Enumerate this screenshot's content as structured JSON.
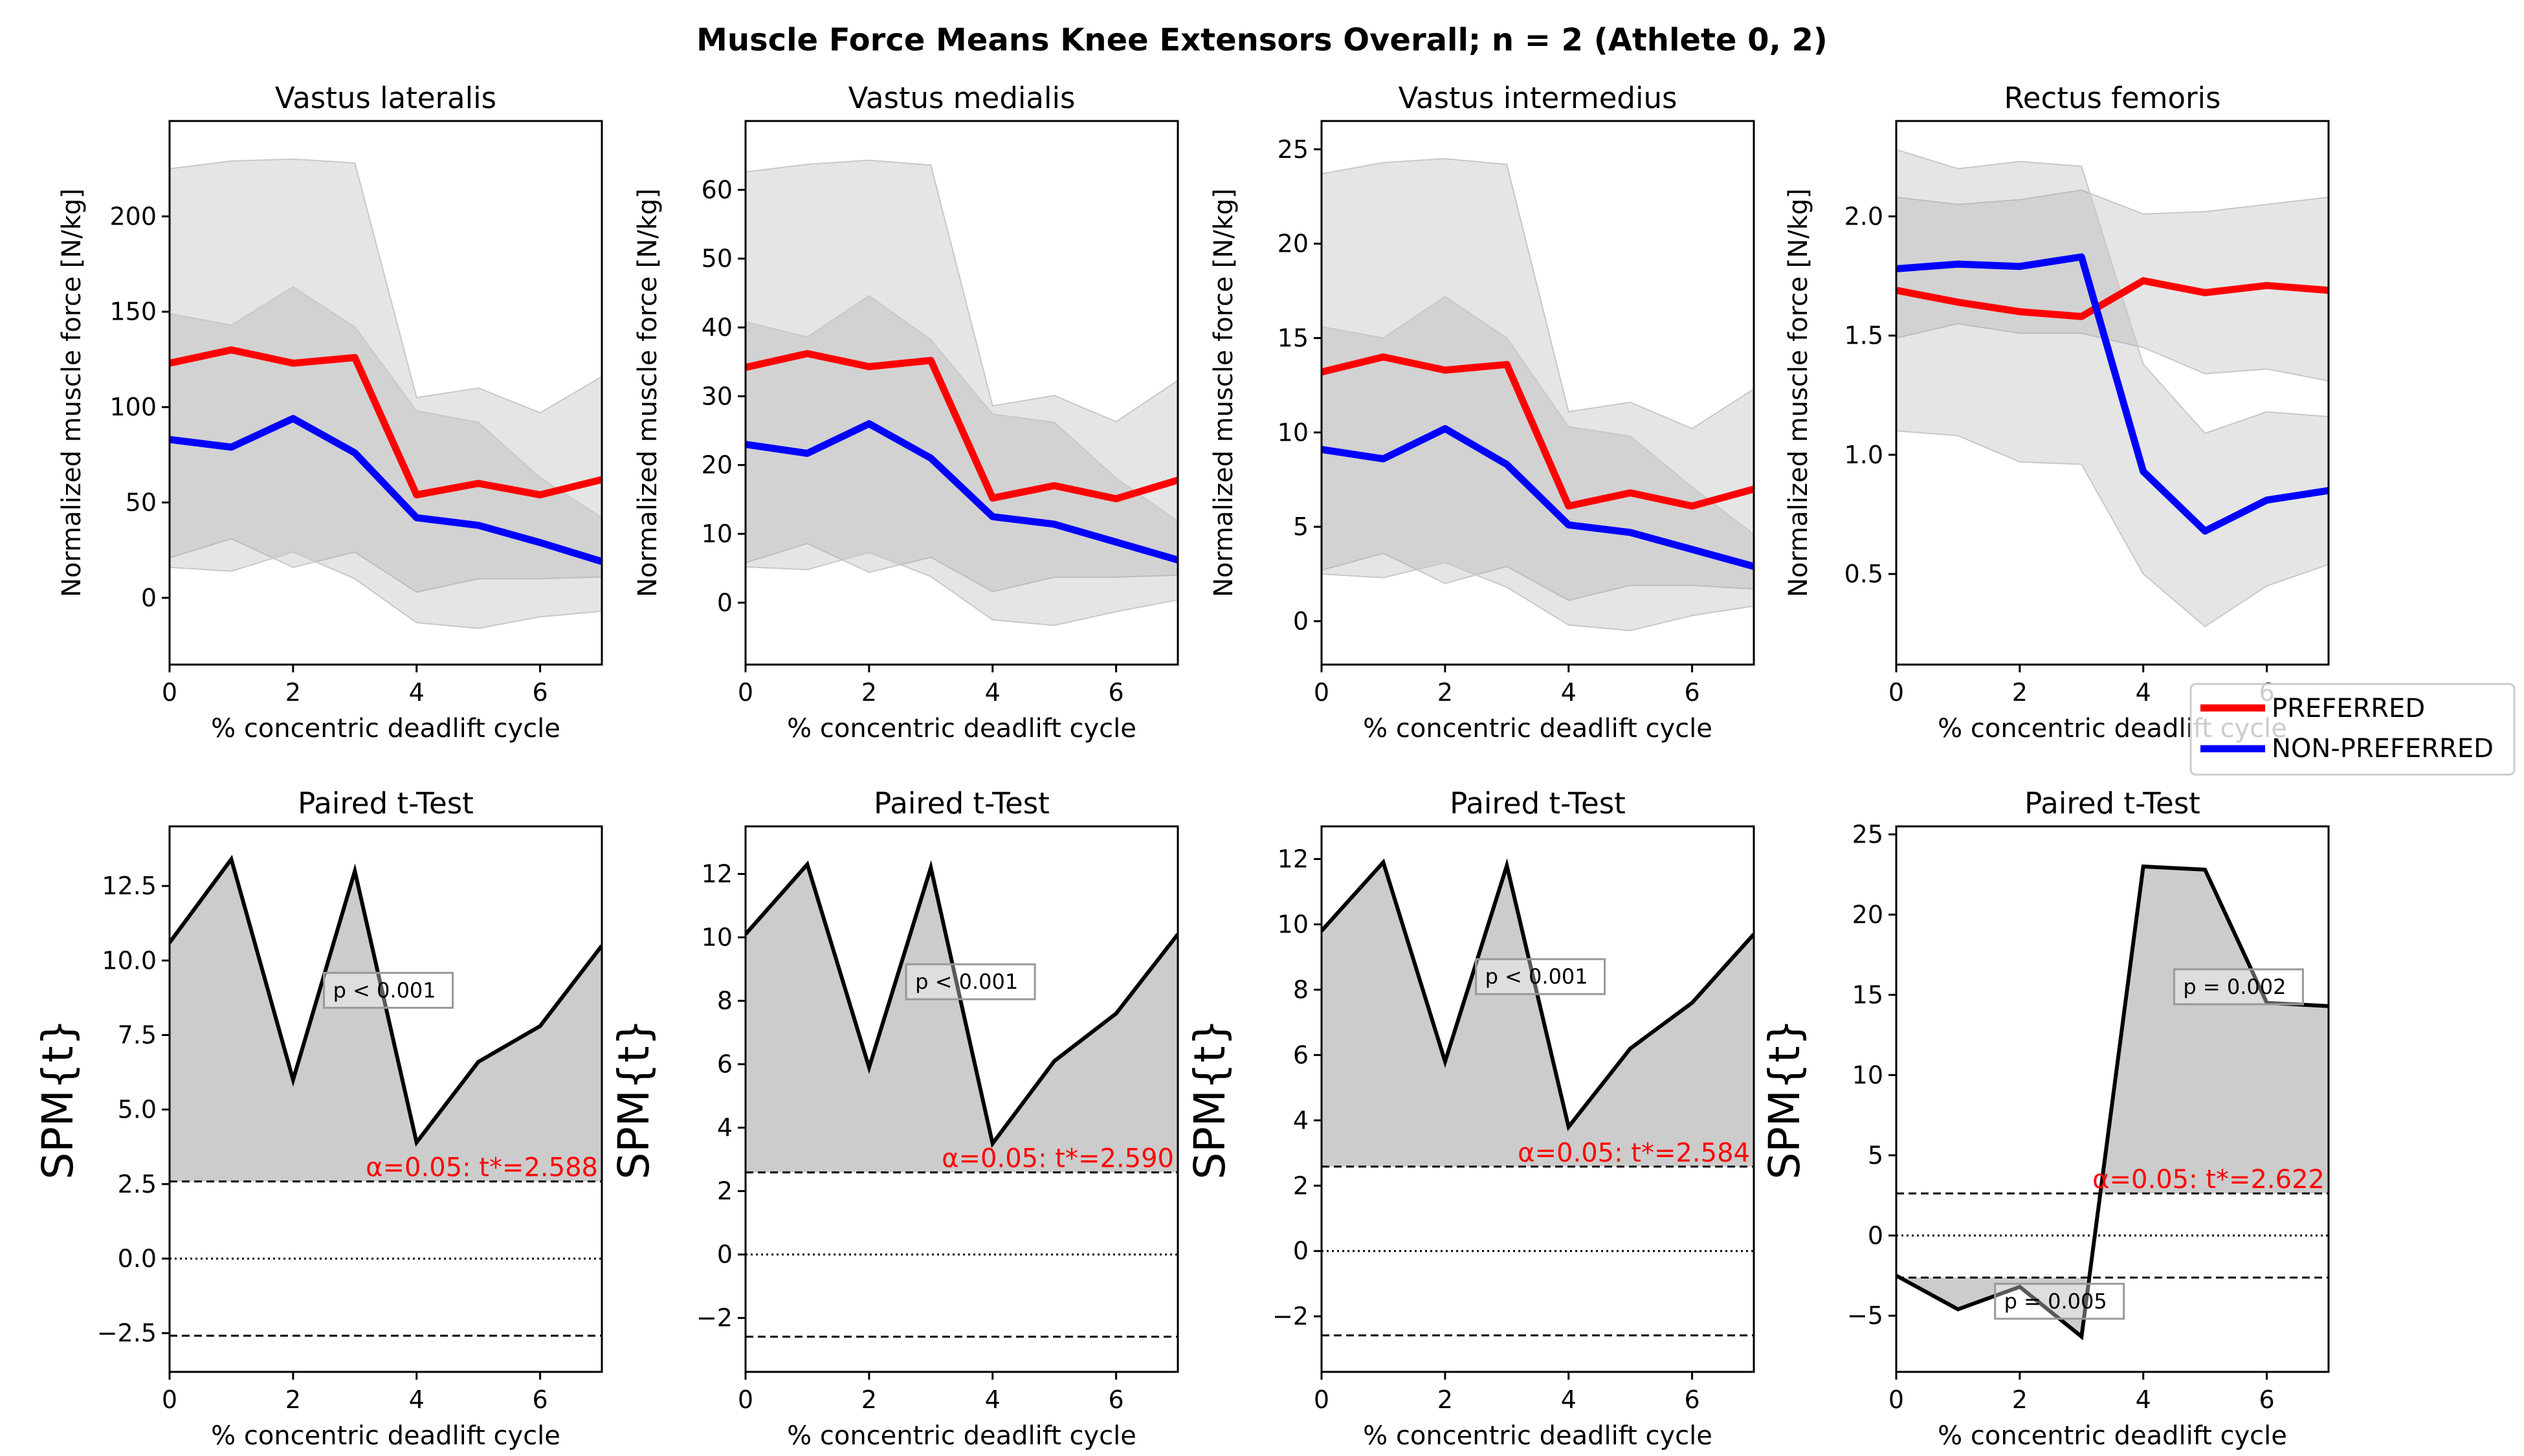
{
  "figure": {
    "title": "Muscle Force Means Knee Extensors Overall; n = 2 (Athlete 0, 2)"
  },
  "legend": {
    "placement": "right, between rows",
    "entries": [
      {
        "label": "PREFERRED",
        "color": "#ff0000"
      },
      {
        "label": "NON-PREFERRED",
        "color": "#0000ff"
      }
    ]
  },
  "chart_data": [
    {
      "type": "line",
      "title": "Vastus lateralis",
      "xlabel": "% concentric deadlift cycle",
      "ylabel": "Normalized muscle force [N/kg]",
      "xlim": [
        0,
        7
      ],
      "ylim": [
        -35,
        250
      ],
      "xticks": [
        0,
        2,
        4,
        6
      ],
      "yticks": [
        0,
        50,
        100,
        150,
        200
      ],
      "x": [
        0,
        1,
        2,
        3,
        4,
        5,
        6,
        7
      ],
      "series": [
        {
          "name": "PREFERRED",
          "color": "#ff0000",
          "values": [
            123,
            130,
            123,
            126,
            54,
            60,
            54,
            62
          ]
        },
        {
          "name": "NON-PREFERRED",
          "color": "#0000ff",
          "values": [
            83,
            79,
            94,
            76,
            42,
            38,
            29,
            19
          ]
        }
      ],
      "bands": [
        {
          "upper": [
            225,
            229,
            230,
            228,
            105,
            110,
            97,
            116
          ],
          "lower": [
            21,
            31,
            16,
            24,
            3,
            10,
            10,
            11
          ]
        },
        {
          "upper": [
            149,
            143,
            163,
            142,
            98,
            92,
            63,
            42
          ],
          "lower": [
            16,
            14,
            24,
            10,
            -13,
            -16,
            -10,
            -7
          ]
        }
      ]
    },
    {
      "type": "line",
      "title": "Vastus medialis",
      "xlabel": "% concentric deadlift cycle",
      "ylabel": "Normalized muscle force [N/kg]",
      "xlim": [
        0,
        7
      ],
      "ylim": [
        -9,
        70
      ],
      "xticks": [
        0,
        2,
        4,
        6
      ],
      "yticks": [
        0,
        10,
        20,
        30,
        40,
        50,
        60
      ],
      "x": [
        0,
        1,
        2,
        3,
        4,
        5,
        6,
        7
      ],
      "series": [
        {
          "name": "PREFERRED",
          "color": "#ff0000",
          "values": [
            34.2,
            36.2,
            34.3,
            35.2,
            15.2,
            17,
            15.1,
            17.8
          ]
        },
        {
          "name": "NON-PREFERRED",
          "color": "#0000ff",
          "values": [
            23,
            21.7,
            26,
            21,
            12.5,
            11.4,
            8.8,
            6.2
          ]
        }
      ],
      "bands": [
        {
          "upper": [
            62.6,
            63.7,
            64.3,
            63.6,
            28.6,
            30.1,
            26.3,
            32.3
          ],
          "lower": [
            5.8,
            8.6,
            4.4,
            6.6,
            1.6,
            3.7,
            3.7,
            4
          ]
        },
        {
          "upper": [
            40.8,
            38.6,
            44.6,
            38.2,
            27.4,
            26.2,
            18.1,
            11.8
          ],
          "lower": [
            5.2,
            4.8,
            7.3,
            3.8,
            -2.5,
            -3.3,
            -1.3,
            0.4
          ]
        }
      ]
    },
    {
      "type": "line",
      "title": "Vastus intermedius",
      "xlabel": "% concentric deadlift cycle",
      "ylabel": "Normalized muscle force [N/kg]",
      "xlim": [
        0,
        7
      ],
      "ylim": [
        -2.3,
        26.5
      ],
      "xticks": [
        0,
        2,
        4,
        6
      ],
      "yticks": [
        0,
        5,
        10,
        15,
        20,
        25
      ],
      "x": [
        0,
        1,
        2,
        3,
        4,
        5,
        6,
        7
      ],
      "series": [
        {
          "name": "PREFERRED",
          "color": "#ff0000",
          "values": [
            13.2,
            14,
            13.3,
            13.6,
            6.1,
            6.8,
            6.1,
            7
          ]
        },
        {
          "name": "NON-PREFERRED",
          "color": "#0000ff",
          "values": [
            9.1,
            8.6,
            10.2,
            8.3,
            5.1,
            4.7,
            3.8,
            2.9
          ]
        }
      ],
      "bands": [
        {
          "upper": [
            23.7,
            24.3,
            24.5,
            24.2,
            11.1,
            11.6,
            10.2,
            12.3
          ],
          "lower": [
            2.7,
            3.6,
            2,
            2.9,
            1.1,
            1.9,
            1.9,
            1.7
          ]
        },
        {
          "upper": [
            15.6,
            15,
            17.2,
            15,
            10.3,
            9.8,
            7.1,
            4.6
          ],
          "lower": [
            2.5,
            2.3,
            3.1,
            1.8,
            -0.2,
            -0.5,
            0.3,
            0.8
          ]
        }
      ]
    },
    {
      "type": "line",
      "title": "Rectus femoris",
      "xlabel": "% concentric deadlift cycle",
      "ylabel": "Normalized muscle force [N/kg]",
      "xlim": [
        0,
        7
      ],
      "ylim": [
        0.12,
        2.4
      ],
      "xticks": [
        0,
        2,
        4,
        6
      ],
      "yticks": [
        0.5,
        1.0,
        1.5,
        2.0
      ],
      "x": [
        0,
        1,
        2,
        3,
        4,
        5,
        6,
        7
      ],
      "series": [
        {
          "name": "PREFERRED",
          "color": "#ff0000",
          "values": [
            1.69,
            1.64,
            1.6,
            1.58,
            1.73,
            1.68,
            1.71,
            1.69
          ]
        },
        {
          "name": "NON-PREFERRED",
          "color": "#0000ff",
          "values": [
            1.78,
            1.8,
            1.79,
            1.83,
            0.93,
            0.68,
            0.81,
            0.85
          ]
        }
      ],
      "bands": [
        {
          "upper": [
            2.08,
            2.05,
            2.07,
            2.11,
            2.01,
            2.02,
            2.05,
            2.08
          ],
          "lower": [
            1.49,
            1.55,
            1.51,
            1.51,
            1.45,
            1.34,
            1.36,
            1.31
          ]
        },
        {
          "upper": [
            2.28,
            2.2,
            2.23,
            2.21,
            1.38,
            1.09,
            1.18,
            1.16
          ],
          "lower": [
            1.1,
            1.08,
            0.97,
            0.96,
            0.5,
            0.28,
            0.45,
            0.54
          ]
        }
      ]
    },
    {
      "type": "line",
      "title": "Paired t-Test",
      "xlabel": "% concentric deadlift cycle",
      "ylabel": "SPM{t}",
      "xlim": [
        0,
        7
      ],
      "ylim": [
        -3.8,
        14.5
      ],
      "xticks": [
        0,
        2,
        4,
        6
      ],
      "yticks": [
        -2.5,
        0.0,
        2.5,
        5.0,
        7.5,
        10.0,
        12.5
      ],
      "ytick_labels": [
        "−2.5",
        "0.0",
        "2.5",
        "5.0",
        "7.5",
        "10.0",
        "12.5"
      ],
      "x": [
        0,
        1,
        2,
        3,
        4,
        5,
        6,
        7
      ],
      "values": [
        10.6,
        13.4,
        6.0,
        13.0,
        3.9,
        6.6,
        7.8,
        10.5
      ],
      "threshold": 2.588,
      "threshold_label": "α=0.05:  t*=2.588",
      "clusters": [
        {
          "sign": "positive",
          "x_range": [
            0,
            7
          ],
          "p_label": "p < 0.001",
          "label_at": [
            2.5,
            9.0
          ]
        }
      ]
    },
    {
      "type": "line",
      "title": "Paired t-Test",
      "xlabel": "% concentric deadlift cycle",
      "ylabel": "SPM{t}",
      "xlim": [
        0,
        7
      ],
      "ylim": [
        -3.7,
        13.5
      ],
      "xticks": [
        0,
        2,
        4,
        6
      ],
      "yticks": [
        -2,
        0,
        2,
        4,
        6,
        8,
        10,
        12
      ],
      "ytick_labels": [
        "−2",
        "0",
        "2",
        "4",
        "6",
        "8",
        "10",
        "12"
      ],
      "x": [
        0,
        1,
        2,
        3,
        4,
        5,
        6,
        7
      ],
      "values": [
        10.1,
        12.3,
        5.9,
        12.2,
        3.5,
        6.1,
        7.6,
        10.1
      ],
      "threshold": 2.59,
      "threshold_label": "α=0.05:  t*=2.590",
      "clusters": [
        {
          "sign": "positive",
          "x_range": [
            0,
            7
          ],
          "p_label": "p < 0.001",
          "label_at": [
            2.6,
            8.6
          ]
        }
      ]
    },
    {
      "type": "line",
      "title": "Paired t-Test",
      "xlabel": "% concentric deadlift cycle",
      "ylabel": "SPM{t}",
      "xlim": [
        0,
        7
      ],
      "ylim": [
        -3.7,
        13.0
      ],
      "xticks": [
        0,
        2,
        4,
        6
      ],
      "yticks": [
        -2,
        0,
        2,
        4,
        6,
        8,
        10,
        12
      ],
      "ytick_labels": [
        "−2",
        "0",
        "2",
        "4",
        "6",
        "8",
        "10",
        "12"
      ],
      "x": [
        0,
        1,
        2,
        3,
        4,
        5,
        6,
        7
      ],
      "values": [
        9.8,
        11.9,
        5.8,
        11.8,
        3.8,
        6.2,
        7.6,
        9.7
      ],
      "threshold": 2.584,
      "threshold_label": "α=0.05:  t*=2.584",
      "clusters": [
        {
          "sign": "positive",
          "x_range": [
            0,
            7
          ],
          "p_label": "p < 0.001",
          "label_at": [
            2.5,
            8.4
          ]
        }
      ]
    },
    {
      "type": "line",
      "title": "Paired t-Test",
      "xlabel": "% concentric deadlift cycle",
      "ylabel": "SPM{t}",
      "xlim": [
        0,
        7
      ],
      "ylim": [
        -8.5,
        25.5
      ],
      "xticks": [
        0,
        2,
        4,
        6
      ],
      "yticks": [
        -5,
        0,
        5,
        10,
        15,
        20,
        25
      ],
      "ytick_labels": [
        "−5",
        "0",
        "5",
        "10",
        "15",
        "20",
        "25"
      ],
      "x": [
        0,
        1,
        2,
        3,
        4,
        5,
        6,
        7
      ],
      "values": [
        -2.5,
        -4.6,
        -3.2,
        -6.3,
        23.0,
        22.8,
        14.5,
        14.3
      ],
      "threshold": 2.622,
      "threshold_label": "α=0.05:  t*=2.622",
      "clusters": [
        {
          "sign": "positive",
          "x_range": [
            3.28,
            7
          ],
          "p_label": "p = 0.002",
          "label_at": [
            4.5,
            15.5
          ]
        },
        {
          "sign": "negative",
          "x_range": [
            0,
            3.07
          ],
          "p_label": "p = 0.005",
          "label_at": [
            1.6,
            -4.1
          ]
        }
      ]
    }
  ]
}
